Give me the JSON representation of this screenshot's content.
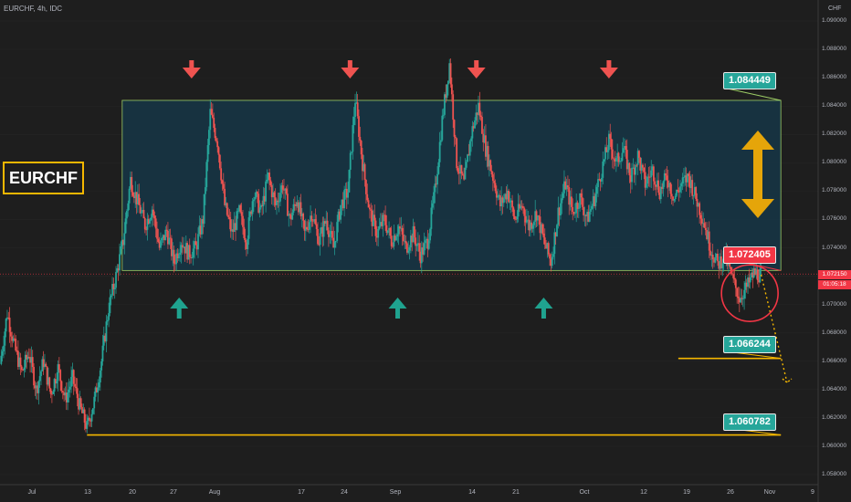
{
  "header": {
    "title": "EURCHF, 4h, IDC",
    "currency": "CHF"
  },
  "symbol_label": "EURCHF",
  "current_price": {
    "value": "1.072150",
    "countdown": "01:05:18"
  },
  "levels": {
    "range_top": "1.084449",
    "range_bottom": "1.072405",
    "support_1": "1.066244",
    "support_2": "1.060782"
  },
  "colors": {
    "bull": "#26a69a",
    "bear": "#ef5350",
    "range_fill": "#1a3a4a",
    "level": "#f5b700",
    "circle": "#f23645"
  },
  "icons": [
    "arrow-down-red",
    "arrow-up-green",
    "double-arrow-vertical-gold"
  ],
  "chart_data": {
    "type": "candlestick",
    "title": "",
    "y_tick_labels": [
      "1.090000",
      "1.088000",
      "1.086000",
      "1.084000",
      "1.082000",
      "1.080000",
      "1.078000",
      "1.076000",
      "1.074000",
      "1.072000",
      "1.070000",
      "1.068000",
      "1.066000",
      "1.064000",
      "1.062000",
      "1.060000",
      "1.058000"
    ],
    "ylim": [
      1.0572,
      1.0907
    ],
    "x_tick_labels": [
      "Jul",
      "13",
      "20",
      "27",
      "Aug",
      "17",
      "24",
      "Sep",
      "14",
      "21",
      "Oct",
      "12",
      "19",
      "26",
      "Nov",
      "9"
    ],
    "close_path": [
      [
        0,
        1.0658
      ],
      [
        0.7,
        1.0694
      ],
      [
        1.4,
        1.067
      ],
      [
        2.1,
        1.0652
      ],
      [
        2.8,
        1.0666
      ],
      [
        3.5,
        1.064
      ],
      [
        4.2,
        1.066
      ],
      [
        4.9,
        1.0637
      ],
      [
        5.6,
        1.0655
      ],
      [
        6.3,
        1.0633
      ],
      [
        7.0,
        1.0648
      ],
      [
        7.7,
        1.0628
      ],
      [
        8.4,
        1.0613
      ],
      [
        9.1,
        1.0632
      ],
      [
        9.8,
        1.066
      ],
      [
        10.5,
        1.0698
      ],
      [
        11.2,
        1.072
      ],
      [
        11.9,
        1.0745
      ],
      [
        12.6,
        1.0788
      ],
      [
        13.3,
        1.0772
      ],
      [
        14.0,
        1.0756
      ],
      [
        14.7,
        1.0768
      ],
      [
        15.4,
        1.074
      ],
      [
        16.1,
        1.0752
      ],
      [
        16.8,
        1.073
      ],
      [
        17.5,
        1.0745
      ],
      [
        18.2,
        1.0736
      ],
      [
        18.9,
        1.074
      ],
      [
        19.6,
        1.076
      ],
      [
        20.3,
        1.0835
      ],
      [
        21.0,
        1.0815
      ],
      [
        21.7,
        1.077
      ],
      [
        22.4,
        1.075
      ],
      [
        23.1,
        1.0765
      ],
      [
        23.8,
        1.0745
      ],
      [
        24.5,
        1.078
      ],
      [
        25.2,
        1.0765
      ],
      [
        25.9,
        1.079
      ],
      [
        26.6,
        1.077
      ],
      [
        27.3,
        1.0785
      ],
      [
        28.0,
        1.076
      ],
      [
        28.7,
        1.0775
      ],
      [
        29.4,
        1.075
      ],
      [
        30.1,
        1.0765
      ],
      [
        30.8,
        1.0745
      ],
      [
        31.5,
        1.076
      ],
      [
        32.2,
        1.074
      ],
      [
        32.9,
        1.077
      ],
      [
        33.6,
        1.078
      ],
      [
        34.3,
        1.0845
      ],
      [
        35.0,
        1.08
      ],
      [
        35.7,
        1.0765
      ],
      [
        36.4,
        1.075
      ],
      [
        37.1,
        1.076
      ],
      [
        37.8,
        1.0745
      ],
      [
        38.5,
        1.0755
      ],
      [
        39.2,
        1.074
      ],
      [
        39.9,
        1.075
      ],
      [
        40.6,
        1.0735
      ],
      [
        41.3,
        1.0745
      ],
      [
        42.0,
        1.078
      ],
      [
        42.7,
        1.083
      ],
      [
        43.4,
        1.087
      ],
      [
        44.1,
        1.08
      ],
      [
        44.8,
        1.0785
      ],
      [
        45.5,
        1.082
      ],
      [
        46.2,
        1.084
      ],
      [
        46.9,
        1.081
      ],
      [
        47.6,
        1.079
      ],
      [
        48.3,
        1.077
      ],
      [
        49.0,
        1.078
      ],
      [
        49.7,
        1.076
      ],
      [
        50.4,
        1.077
      ],
      [
        51.1,
        1.0755
      ],
      [
        51.8,
        1.0765
      ],
      [
        52.5,
        1.0745
      ],
      [
        53.2,
        1.073
      ],
      [
        53.9,
        1.0765
      ],
      [
        54.6,
        1.0785
      ],
      [
        55.3,
        1.0765
      ],
      [
        56.0,
        1.0775
      ],
      [
        56.7,
        1.076
      ],
      [
        57.4,
        1.0775
      ],
      [
        58.1,
        1.0795
      ],
      [
        58.8,
        1.0815
      ],
      [
        59.5,
        1.08
      ],
      [
        60.2,
        1.081
      ],
      [
        60.9,
        1.079
      ],
      [
        61.6,
        1.0805
      ],
      [
        62.3,
        1.0785
      ],
      [
        63.0,
        1.0795
      ],
      [
        63.7,
        1.078
      ],
      [
        64.4,
        1.079
      ],
      [
        65.1,
        1.0775
      ],
      [
        65.8,
        1.0785
      ],
      [
        66.5,
        1.079
      ],
      [
        67.2,
        1.0775
      ],
      [
        67.9,
        1.076
      ],
      [
        68.6,
        1.074
      ],
      [
        69.3,
        1.0728
      ],
      [
        70.0,
        1.0735
      ],
      [
        70.7,
        1.0718
      ],
      [
        71.4,
        1.0705
      ],
      [
        72.1,
        1.0712
      ],
      [
        72.8,
        1.0722
      ],
      [
        73.5,
        1.0721
      ]
    ],
    "projection_path": [
      [
        73.5,
        1.0721
      ],
      [
        76.0,
        1.0645
      ]
    ],
    "annotations": {
      "range_box": {
        "from": 11.8,
        "to": 75.4,
        "top": 1.0844,
        "bottom": 1.0724
      },
      "horizontal_levels": [
        {
          "value": 1.0662,
          "from": 65.5,
          "to": 75.4
        },
        {
          "value": 1.0608,
          "from": 8.4,
          "to": 75.4
        }
      ],
      "down_arrows": [
        18.5,
        33.8,
        46.0,
        58.8
      ],
      "up_arrows": [
        17.3,
        38.4,
        52.5
      ],
      "circle": {
        "x": 72.4,
        "y": 1.0708
      }
    }
  }
}
